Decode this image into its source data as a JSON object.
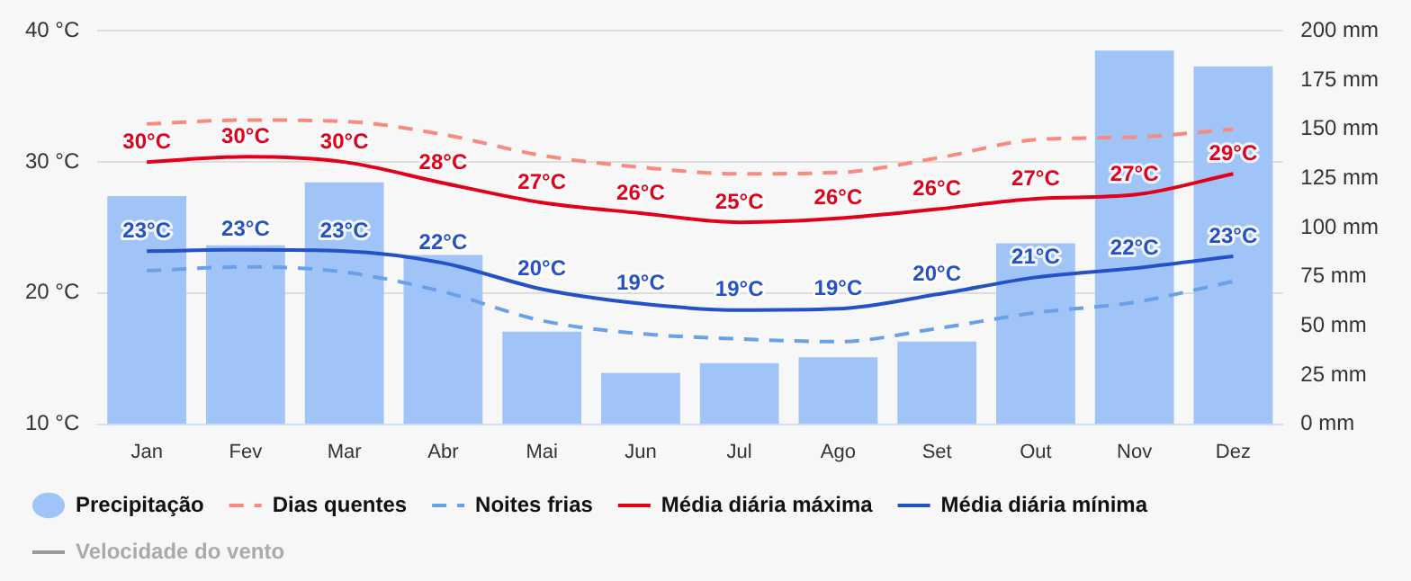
{
  "chart_data": {
    "type": "line",
    "categories": [
      "Jan",
      "Fev",
      "Mar",
      "Abr",
      "Mai",
      "Jun",
      "Jul",
      "Ago",
      "Set",
      "Out",
      "Nov",
      "Dez"
    ],
    "series": [
      {
        "name": "Precipitação",
        "type": "bar",
        "axis": "y2",
        "color": "#a0c4f8",
        "values": [
          116,
          91,
          123,
          86,
          47,
          26,
          31,
          34,
          42,
          92,
          190,
          182
        ]
      },
      {
        "name": "Dias quentes",
        "line_style": "dashed",
        "color": "#f98a80",
        "values": [
          32.9,
          33.2,
          33.1,
          32.1,
          30.5,
          29.6,
          29.1,
          29.2,
          30.3,
          31.7,
          31.9,
          32.5
        ]
      },
      {
        "name": "Noites frias",
        "line_style": "dashed",
        "color": "#6aa0e8",
        "values": [
          21.7,
          22.0,
          21.6,
          20.1,
          17.9,
          16.9,
          16.5,
          16.3,
          17.3,
          18.5,
          19.3,
          20.9
        ]
      },
      {
        "name": "Média diária máxima",
        "line_style": "solid",
        "color": "#e0001a",
        "values": [
          30.0,
          30.4,
          30.0,
          28.4,
          26.9,
          26.1,
          25.4,
          25.7,
          26.4,
          27.2,
          27.5,
          29.1
        ],
        "value_labels": [
          "30°C",
          "30°C",
          "30°C",
          "28°C",
          "27°C",
          "26°C",
          "25°C",
          "26°C",
          "26°C",
          "27°C",
          "27°C",
          "29°C"
        ]
      },
      {
        "name": "Média diária mínima",
        "line_style": "solid",
        "color": "#2450c8",
        "values": [
          23.2,
          23.3,
          23.2,
          22.3,
          20.3,
          19.2,
          18.7,
          18.8,
          19.9,
          21.2,
          21.9,
          22.8
        ],
        "value_labels": [
          "23°C",
          "23°C",
          "23°C",
          "22°C",
          "20°C",
          "19°C",
          "19°C",
          "19°C",
          "20°C",
          "21°C",
          "22°C",
          "23°C"
        ]
      },
      {
        "name": "Velocidade do vento",
        "line_style": "solid",
        "color": "#999999",
        "values": [
          null,
          null,
          null,
          null,
          null,
          null,
          null,
          null,
          null,
          null,
          null,
          null
        ]
      }
    ],
    "ylim": [
      10,
      40
    ],
    "yticks": [
      {
        "value": 10,
        "label": "10 °C"
      },
      {
        "value": 20,
        "label": "20 °C"
      },
      {
        "value": 30,
        "label": "30 °C"
      },
      {
        "value": 40,
        "label": "40 °C"
      }
    ],
    "y2lim": [
      0,
      200
    ],
    "y2ticks": [
      {
        "value": 0,
        "label": "0 mm"
      },
      {
        "value": 25,
        "label": "25 mm"
      },
      {
        "value": 50,
        "label": "50 mm"
      },
      {
        "value": 75,
        "label": "75 mm"
      },
      {
        "value": 100,
        "label": "100 mm"
      },
      {
        "value": 125,
        "label": "125 mm"
      },
      {
        "value": 150,
        "label": "150 mm"
      },
      {
        "value": 175,
        "label": "175 mm"
      },
      {
        "value": 200,
        "label": "200 mm"
      }
    ],
    "grid": "y",
    "legend": "bottom",
    "marker": "none"
  }
}
